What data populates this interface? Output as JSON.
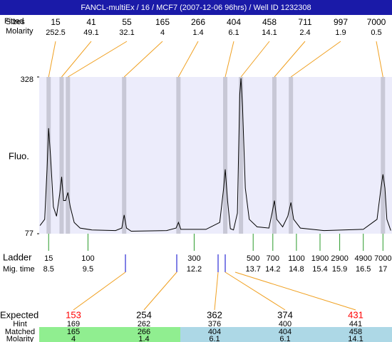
{
  "chart_data": {
    "type": "electropherogram",
    "title": "FANCL-multiEx / 16 / MCF7 (2007-12-06 96hrs) / Well ID 1232308",
    "ylabel": "Fluo.",
    "ylim": [
      77,
      328
    ],
    "yticks": [
      77,
      328
    ],
    "xlim": [
      8.26,
      17.23
    ],
    "trace": {
      "color": "#000000",
      "x": [
        8.28,
        8.4,
        8.46,
        8.5,
        8.55,
        8.62,
        8.7,
        8.78,
        8.83,
        8.88,
        8.93,
        8.99,
        9.05,
        9.15,
        9.3,
        9.6,
        10.2,
        10.36,
        10.42,
        10.48,
        10.6,
        11.5,
        11.74,
        11.8,
        11.86,
        12.5,
        12.85,
        12.95,
        12.99,
        13.05,
        13.12,
        13.2,
        13.3,
        13.36,
        13.39,
        13.43,
        13.5,
        13.6,
        13.8,
        14.1,
        14.18,
        14.24,
        14.3,
        14.45,
        14.58,
        14.66,
        14.73,
        14.9,
        15.5,
        16.5,
        16.85,
        16.95,
        17.0,
        17.05,
        17.1,
        17.2
      ],
      "values": [
        90,
        100,
        180,
        246,
        200,
        120,
        105,
        140,
        168,
        130,
        130,
        143,
        120,
        95,
        86,
        83,
        82,
        86,
        107,
        86,
        81,
        82,
        86,
        95,
        84,
        84,
        95,
        150,
        180,
        130,
        85,
        83,
        110,
        300,
        326,
        280,
        150,
        100,
        88,
        86,
        110,
        130,
        100,
        88,
        105,
        127,
        100,
        86,
        82,
        84,
        100,
        150,
        172,
        150,
        100,
        82
      ]
    },
    "peaks": {
      "row_labels": [
        "Fitted",
        "Sizes",
        "Molarity"
      ],
      "x": [
        8.5,
        8.83,
        8.99,
        10.42,
        11.8,
        12.99,
        13.39,
        14.24,
        14.66,
        17.0
      ],
      "sizes": [
        15,
        41,
        55,
        165,
        266,
        404,
        458,
        711,
        997,
        7000
      ],
      "molarity": [
        252.5,
        49.1,
        32.1,
        4,
        1.4,
        6.1,
        14.1,
        2.4,
        1.9,
        0.5
      ]
    },
    "ladder": {
      "row_labels": [
        "Ladder",
        "Mig. time"
      ],
      "sizes": [
        15,
        100,
        300,
        500,
        700,
        1100,
        1900,
        2900,
        4900,
        7000
      ],
      "mig_times": [
        8.5,
        9.5,
        12.2,
        13.7,
        14.2,
        14.8,
        15.4,
        15.9,
        16.5,
        17
      ]
    },
    "expected": {
      "row_labels": [
        "Expected",
        "Hint",
        "Matched",
        "Molarity"
      ],
      "expected": [
        153,
        254,
        362,
        374,
        431
      ],
      "expected_colors": [
        "#ff0000",
        "#000000",
        "#000000",
        "#000000",
        "#ff0000"
      ],
      "hint": [
        169,
        262,
        376,
        400,
        441
      ],
      "matched": [
        165,
        266,
        404,
        404,
        458
      ],
      "molarity": [
        4,
        1.4,
        6.1,
        6.1,
        14.1
      ],
      "cell_colors": [
        "#90ee90",
        "#90ee90",
        "#add8e6",
        "#add8e6",
        "#add8e6"
      ]
    }
  }
}
